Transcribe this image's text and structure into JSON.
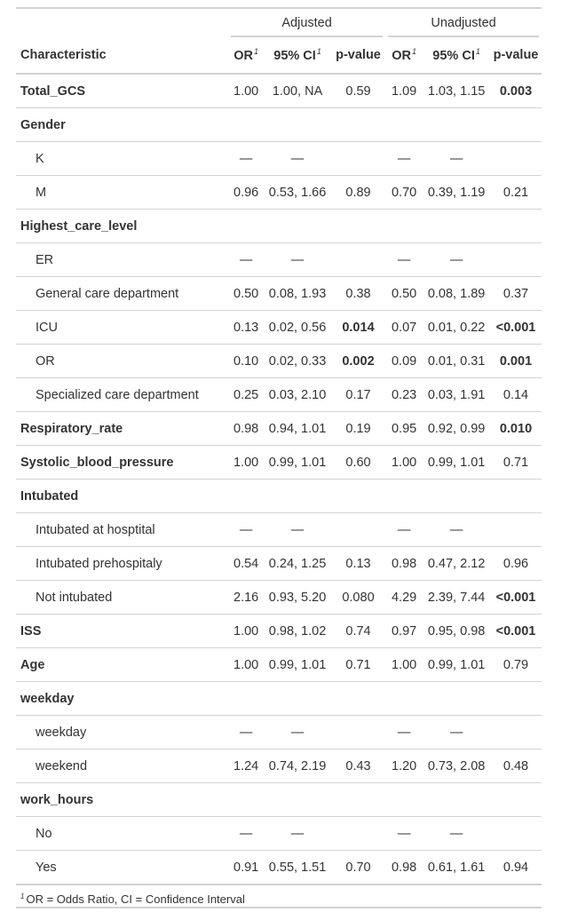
{
  "spanners": {
    "adjusted": "Adjusted",
    "unadjusted": "Unadjusted"
  },
  "columns": {
    "characteristic": "Characteristic",
    "or": "OR",
    "ci": "95% CI",
    "p": "p-value",
    "or2": "OR",
    "ci2": "95% CI",
    "p2": "p-value",
    "footnote_mark": "1"
  },
  "rows": [
    {
      "label": "Total_GCS",
      "type": "group",
      "or": "1.00",
      "ci": "1.00, NA",
      "p": "0.59",
      "p_bold": false,
      "or2": "1.09",
      "ci2": "1.03, 1.15",
      "p2": "0.003",
      "p2_bold": true
    },
    {
      "label": "Gender",
      "type": "group",
      "or": "",
      "ci": "",
      "p": "",
      "p_bold": false,
      "or2": "",
      "ci2": "",
      "p2": "",
      "p2_bold": false
    },
    {
      "label": "K",
      "type": "level",
      "or": "—",
      "ci": "—",
      "p": "",
      "p_bold": false,
      "or2": "—",
      "ci2": "—",
      "p2": "",
      "p2_bold": false
    },
    {
      "label": "M",
      "type": "level",
      "or": "0.96",
      "ci": "0.53, 1.66",
      "p": "0.89",
      "p_bold": false,
      "or2": "0.70",
      "ci2": "0.39, 1.19",
      "p2": "0.21",
      "p2_bold": false
    },
    {
      "label": "Highest_care_level",
      "type": "group",
      "or": "",
      "ci": "",
      "p": "",
      "p_bold": false,
      "or2": "",
      "ci2": "",
      "p2": "",
      "p2_bold": false
    },
    {
      "label": "ER",
      "type": "level",
      "or": "—",
      "ci": "—",
      "p": "",
      "p_bold": false,
      "or2": "—",
      "ci2": "—",
      "p2": "",
      "p2_bold": false
    },
    {
      "label": "General care department",
      "type": "level",
      "or": "0.50",
      "ci": "0.08, 1.93",
      "p": "0.38",
      "p_bold": false,
      "or2": "0.50",
      "ci2": "0.08, 1.89",
      "p2": "0.37",
      "p2_bold": false
    },
    {
      "label": "ICU",
      "type": "level",
      "or": "0.13",
      "ci": "0.02, 0.56",
      "p": "0.014",
      "p_bold": true,
      "or2": "0.07",
      "ci2": "0.01, 0.22",
      "p2": "<0.001",
      "p2_bold": true
    },
    {
      "label": "OR",
      "type": "level",
      "or": "0.10",
      "ci": "0.02, 0.33",
      "p": "0.002",
      "p_bold": true,
      "or2": "0.09",
      "ci2": "0.01, 0.31",
      "p2": "0.001",
      "p2_bold": true
    },
    {
      "label": "Specialized care department",
      "type": "level",
      "or": "0.25",
      "ci": "0.03, 2.10",
      "p": "0.17",
      "p_bold": false,
      "or2": "0.23",
      "ci2": "0.03, 1.91",
      "p2": "0.14",
      "p2_bold": false
    },
    {
      "label": "Respiratory_rate",
      "type": "group",
      "or": "0.98",
      "ci": "0.94, 1.01",
      "p": "0.19",
      "p_bold": false,
      "or2": "0.95",
      "ci2": "0.92, 0.99",
      "p2": "0.010",
      "p2_bold": true
    },
    {
      "label": "Systolic_blood_pressure",
      "type": "group",
      "or": "1.00",
      "ci": "0.99, 1.01",
      "p": "0.60",
      "p_bold": false,
      "or2": "1.00",
      "ci2": "0.99, 1.01",
      "p2": "0.71",
      "p2_bold": false
    },
    {
      "label": "Intubated",
      "type": "group",
      "or": "",
      "ci": "",
      "p": "",
      "p_bold": false,
      "or2": "",
      "ci2": "",
      "p2": "",
      "p2_bold": false
    },
    {
      "label": "Intubated at hosptital",
      "type": "level",
      "or": "—",
      "ci": "—",
      "p": "",
      "p_bold": false,
      "or2": "—",
      "ci2": "—",
      "p2": "",
      "p2_bold": false
    },
    {
      "label": "Intubated prehospitaly",
      "type": "level",
      "or": "0.54",
      "ci": "0.24, 1.25",
      "p": "0.13",
      "p_bold": false,
      "or2": "0.98",
      "ci2": "0.47, 2.12",
      "p2": "0.96",
      "p2_bold": false
    },
    {
      "label": "Not intubated",
      "type": "level",
      "or": "2.16",
      "ci": "0.93, 5.20",
      "p": "0.080",
      "p_bold": false,
      "or2": "4.29",
      "ci2": "2.39, 7.44",
      "p2": "<0.001",
      "p2_bold": true
    },
    {
      "label": "ISS",
      "type": "group",
      "or": "1.00",
      "ci": "0.98, 1.02",
      "p": "0.74",
      "p_bold": false,
      "or2": "0.97",
      "ci2": "0.95, 0.98",
      "p2": "<0.001",
      "p2_bold": true
    },
    {
      "label": "Age",
      "type": "group",
      "or": "1.00",
      "ci": "0.99, 1.01",
      "p": "0.71",
      "p_bold": false,
      "or2": "1.00",
      "ci2": "0.99, 1.01",
      "p2": "0.79",
      "p2_bold": false
    },
    {
      "label": "weekday",
      "type": "group",
      "or": "",
      "ci": "",
      "p": "",
      "p_bold": false,
      "or2": "",
      "ci2": "",
      "p2": "",
      "p2_bold": false
    },
    {
      "label": "weekday",
      "type": "level",
      "or": "—",
      "ci": "—",
      "p": "",
      "p_bold": false,
      "or2": "—",
      "ci2": "—",
      "p2": "",
      "p2_bold": false
    },
    {
      "label": "weekend",
      "type": "level",
      "or": "1.24",
      "ci": "0.74, 2.19",
      "p": "0.43",
      "p_bold": false,
      "or2": "1.20",
      "ci2": "0.73, 2.08",
      "p2": "0.48",
      "p2_bold": false
    },
    {
      "label": "work_hours",
      "type": "group",
      "or": "",
      "ci": "",
      "p": "",
      "p_bold": false,
      "or2": "",
      "ci2": "",
      "p2": "",
      "p2_bold": false
    },
    {
      "label": "No",
      "type": "level",
      "or": "—",
      "ci": "—",
      "p": "",
      "p_bold": false,
      "or2": "—",
      "ci2": "—",
      "p2": "",
      "p2_bold": false
    },
    {
      "label": "Yes",
      "type": "level",
      "or": "0.91",
      "ci": "0.55, 1.51",
      "p": "0.70",
      "p_bold": false,
      "or2": "0.98",
      "ci2": "0.61, 1.61",
      "p2": "0.94",
      "p2_bold": false
    }
  ],
  "footnote": {
    "mark": "1",
    "text": "OR = Odds Ratio, CI = Confidence Interval"
  }
}
